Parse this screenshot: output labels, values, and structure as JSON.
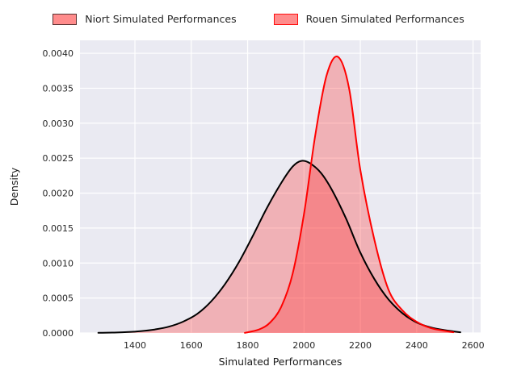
{
  "legend": {
    "items": [
      {
        "label": "Niort Simulated Performances",
        "patch_fill": "rgba(255,0,0,0.45)",
        "patch_edge": "rgba(0,0,0,0.65)"
      },
      {
        "label": "Rouen Simulated Performances",
        "patch_fill": "rgba(255,0,0,0.45)",
        "patch_edge": "rgba(255,0,0,0.9)"
      }
    ]
  },
  "chart_data": {
    "type": "area",
    "subtype": "kde-density",
    "title": "",
    "xlabel": "Simulated Performances",
    "ylabel": "Density",
    "xlim": [
      1205,
      2627
    ],
    "ylim": [
      0,
      0.004185
    ],
    "x_ticks": [
      1400,
      1600,
      1800,
      2000,
      2200,
      2400,
      2600
    ],
    "x_tick_labels": [
      "1400",
      "1600",
      "1800",
      "2000",
      "2200",
      "2400",
      "2600"
    ],
    "y_ticks": [
      0.0,
      0.0005,
      0.001,
      0.0015,
      0.002,
      0.0025,
      0.003,
      0.0035,
      0.004
    ],
    "y_tick_labels": [
      "0.0000",
      "0.0005",
      "0.0010",
      "0.0015",
      "0.0020",
      "0.0025",
      "0.0030",
      "0.0035",
      "0.0040"
    ],
    "grid": true,
    "legend_position": "top-outside",
    "colors": {
      "plot_bg": "#eaeaf2",
      "grid": "#ffffff",
      "tick_text": "#262626",
      "axis_label_text": "#1a1a1a"
    },
    "series": [
      {
        "name": "Niort Simulated Performances",
        "line_color": "#000000",
        "fill_color": "rgba(255,30,30,0.28)",
        "peak": {
          "x": 1990,
          "density": 0.00246
        },
        "points": [
          [
            1270,
            2e-06
          ],
          [
            1320,
            6e-06
          ],
          [
            1370,
            1.3e-05
          ],
          [
            1420,
            2.6e-05
          ],
          [
            1470,
            5e-05
          ],
          [
            1520,
            9e-05
          ],
          [
            1570,
            0.00016
          ],
          [
            1620,
            0.00027
          ],
          [
            1670,
            0.00045
          ],
          [
            1720,
            0.0007
          ],
          [
            1770,
            0.00102
          ],
          [
            1820,
            0.0014
          ],
          [
            1870,
            0.0018
          ],
          [
            1920,
            0.00215
          ],
          [
            1960,
            0.00238
          ],
          [
            1990,
            0.00246
          ],
          [
            2020,
            0.00243
          ],
          [
            2060,
            0.00229
          ],
          [
            2100,
            0.00204
          ],
          [
            2150,
            0.00163
          ],
          [
            2200,
            0.00115
          ],
          [
            2250,
            0.00077
          ],
          [
            2300,
            0.00048
          ],
          [
            2350,
            0.00028
          ],
          [
            2400,
            0.00015
          ],
          [
            2450,
            8e-05
          ],
          [
            2500,
            4e-05
          ],
          [
            2555,
            1e-05
          ]
        ]
      },
      {
        "name": "Rouen Simulated Performances",
        "line_color": "#ff0000",
        "fill_color": "rgba(255,30,30,0.28)",
        "peak": {
          "x": 2120,
          "density": 0.00395
        },
        "points": [
          [
            1790,
            2e-06
          ],
          [
            1840,
            5e-05
          ],
          [
            1880,
            0.00015
          ],
          [
            1920,
            0.00038
          ],
          [
            1960,
            0.00085
          ],
          [
            2000,
            0.0017
          ],
          [
            2040,
            0.00283
          ],
          [
            2080,
            0.00368
          ],
          [
            2120,
            0.00395
          ],
          [
            2160,
            0.0035
          ],
          [
            2200,
            0.00233
          ],
          [
            2250,
            0.00133
          ],
          [
            2300,
            0.00062
          ],
          [
            2350,
            0.00032
          ],
          [
            2400,
            0.00016
          ],
          [
            2450,
            7e-05
          ],
          [
            2500,
            3e-05
          ],
          [
            2530,
            1e-05
          ]
        ]
      }
    ]
  }
}
